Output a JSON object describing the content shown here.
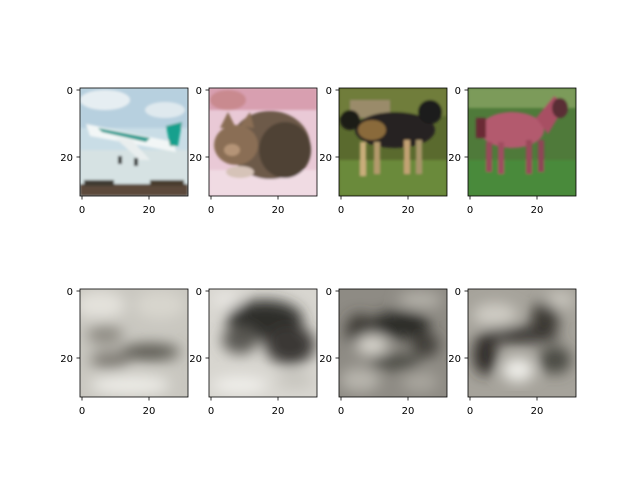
{
  "chart_data": {
    "type": "image-grid",
    "rows": 2,
    "cols": 4,
    "grid": false,
    "xlim": [
      -0.5,
      31.5
    ],
    "ylim": [
      31.5,
      -0.5
    ],
    "x_ticks": [
      0,
      20
    ],
    "y_ticks": [
      0,
      20
    ],
    "panels": [
      {
        "row": 0,
        "col": 0,
        "content": "airplane photo",
        "palette": "color"
      },
      {
        "row": 0,
        "col": 1,
        "content": "cat photo",
        "palette": "color"
      },
      {
        "row": 0,
        "col": 2,
        "content": "dog photo",
        "palette": "color"
      },
      {
        "row": 0,
        "col": 3,
        "content": "horse photo",
        "palette": "color"
      },
      {
        "row": 1,
        "col": 0,
        "content": "blurry grayscale reconstruction",
        "palette": "grayscale"
      },
      {
        "row": 1,
        "col": 1,
        "content": "blurry grayscale reconstruction",
        "palette": "grayscale"
      },
      {
        "row": 1,
        "col": 2,
        "content": "blurry grayscale reconstruction",
        "palette": "grayscale"
      },
      {
        "row": 1,
        "col": 3,
        "content": "blurry grayscale reconstruction",
        "palette": "grayscale"
      }
    ]
  }
}
